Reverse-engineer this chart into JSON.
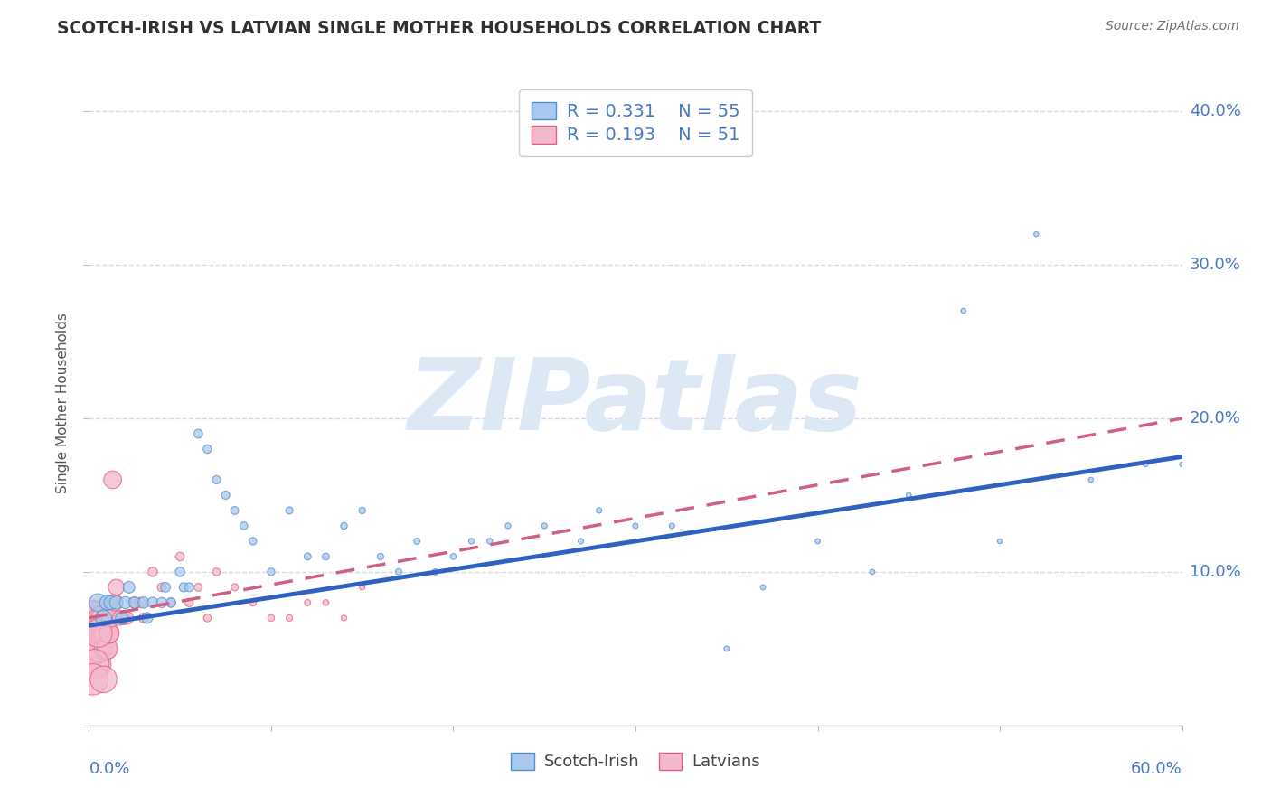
{
  "title": "SCOTCH-IRISH VS LATVIAN SINGLE MOTHER HOUSEHOLDS CORRELATION CHART",
  "source": "Source: ZipAtlas.com",
  "ylabel": "Single Mother Households",
  "xlim": [
    0.0,
    0.6
  ],
  "ylim": [
    0.0,
    0.42
  ],
  "yticks": [
    0.0,
    0.1,
    0.2,
    0.3,
    0.4
  ],
  "ytick_labels": [
    "",
    "10.0%",
    "20.0%",
    "30.0%",
    "40.0%"
  ],
  "legend_r1": "R = 0.331",
  "legend_n1": "N = 55",
  "legend_r2": "R = 0.193",
  "legend_n2": "N = 51",
  "color_blue": "#aac8ee",
  "color_pink": "#f4b8cc",
  "color_edge_blue": "#5090d0",
  "color_edge_pink": "#e06080",
  "color_line_blue": "#3060c0",
  "color_line_pink": "#d06080",
  "background_color": "#ffffff",
  "grid_color": "#d8d8e8",
  "watermark_text": "ZIPatlas",
  "watermark_color": "#dde8f5",
  "title_color": "#303030",
  "source_color": "#707070",
  "axis_label_color": "#4878c8",
  "scotch_irish_x": [
    0.005,
    0.008,
    0.01,
    0.012,
    0.015,
    0.018,
    0.02,
    0.022,
    0.025,
    0.03,
    0.032,
    0.035,
    0.04,
    0.042,
    0.045,
    0.05,
    0.052,
    0.055,
    0.06,
    0.065,
    0.07,
    0.075,
    0.08,
    0.085,
    0.09,
    0.1,
    0.11,
    0.12,
    0.13,
    0.14,
    0.15,
    0.16,
    0.17,
    0.18,
    0.19,
    0.2,
    0.21,
    0.22,
    0.23,
    0.25,
    0.27,
    0.28,
    0.3,
    0.32,
    0.35,
    0.37,
    0.4,
    0.43,
    0.45,
    0.48,
    0.5,
    0.52,
    0.55,
    0.58,
    0.6
  ],
  "scotch_irish_y": [
    0.08,
    0.07,
    0.08,
    0.08,
    0.08,
    0.07,
    0.08,
    0.09,
    0.08,
    0.08,
    0.07,
    0.08,
    0.08,
    0.09,
    0.08,
    0.1,
    0.09,
    0.09,
    0.19,
    0.18,
    0.16,
    0.15,
    0.14,
    0.13,
    0.12,
    0.1,
    0.14,
    0.11,
    0.11,
    0.13,
    0.14,
    0.11,
    0.1,
    0.12,
    0.1,
    0.11,
    0.12,
    0.12,
    0.13,
    0.13,
    0.12,
    0.14,
    0.13,
    0.13,
    0.05,
    0.09,
    0.12,
    0.1,
    0.15,
    0.27,
    0.12,
    0.32,
    0.16,
    0.17,
    0.17
  ],
  "scotch_irish_sizes": [
    200,
    160,
    140,
    120,
    110,
    100,
    90,
    85,
    80,
    80,
    75,
    70,
    65,
    60,
    58,
    55,
    52,
    50,
    48,
    45,
    43,
    42,
    40,
    38,
    36,
    35,
    33,
    32,
    30,
    28,
    27,
    26,
    25,
    24,
    23,
    22,
    21,
    21,
    20,
    20,
    19,
    19,
    18,
    18,
    17,
    17,
    17,
    16,
    16,
    16,
    15,
    15,
    15,
    15,
    15
  ],
  "latvians_x": [
    0.001,
    0.002,
    0.002,
    0.003,
    0.003,
    0.004,
    0.004,
    0.005,
    0.005,
    0.006,
    0.006,
    0.007,
    0.007,
    0.008,
    0.008,
    0.009,
    0.009,
    0.01,
    0.01,
    0.011,
    0.011,
    0.012,
    0.013,
    0.014,
    0.015,
    0.017,
    0.019,
    0.021,
    0.025,
    0.028,
    0.03,
    0.035,
    0.04,
    0.045,
    0.05,
    0.055,
    0.06,
    0.065,
    0.07,
    0.08,
    0.09,
    0.1,
    0.11,
    0.12,
    0.13,
    0.14,
    0.15,
    0.005,
    0.003,
    0.002,
    0.008
  ],
  "latvians_y": [
    0.06,
    0.07,
    0.05,
    0.06,
    0.07,
    0.05,
    0.04,
    0.06,
    0.05,
    0.06,
    0.05,
    0.07,
    0.06,
    0.07,
    0.06,
    0.06,
    0.05,
    0.07,
    0.05,
    0.06,
    0.06,
    0.07,
    0.16,
    0.08,
    0.09,
    0.07,
    0.07,
    0.07,
    0.08,
    0.08,
    0.07,
    0.1,
    0.09,
    0.08,
    0.11,
    0.08,
    0.09,
    0.07,
    0.1,
    0.09,
    0.08,
    0.07,
    0.07,
    0.08,
    0.08,
    0.07,
    0.09,
    0.06,
    0.04,
    0.03,
    0.03
  ],
  "latvians_sizes": [
    900,
    800,
    750,
    700,
    650,
    600,
    560,
    520,
    500,
    470,
    450,
    420,
    400,
    380,
    360,
    340,
    320,
    300,
    280,
    260,
    240,
    220,
    200,
    180,
    160,
    140,
    120,
    100,
    80,
    70,
    60,
    55,
    50,
    48,
    45,
    43,
    40,
    38,
    36,
    33,
    30,
    28,
    26,
    24,
    22,
    20,
    18,
    500,
    550,
    620,
    450
  ],
  "lv_regression_start_x": 0.0,
  "lv_regression_end_x": 0.6,
  "lv_regression_start_y": 0.07,
  "lv_regression_end_y": 0.2,
  "si_regression_start_x": 0.0,
  "si_regression_end_x": 0.6,
  "si_regression_start_y": 0.065,
  "si_regression_end_y": 0.175
}
